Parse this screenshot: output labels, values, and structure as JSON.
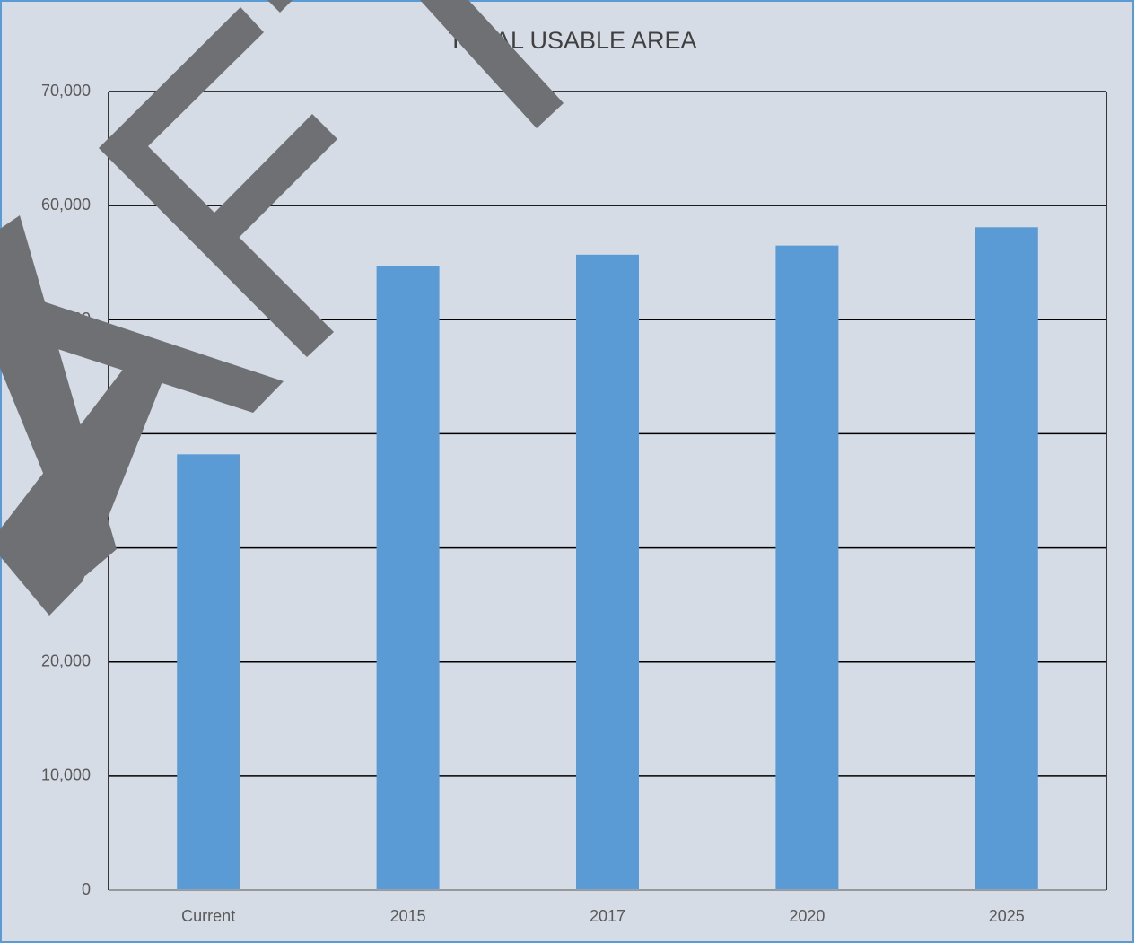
{
  "chart_data": {
    "type": "bar",
    "title": "TOTAL USABLE AREA",
    "categories": [
      "Current",
      "2015",
      "2017",
      "2020",
      "2025"
    ],
    "values": [
      38200,
      54700,
      55700,
      56500,
      58100
    ],
    "color": "#5b9bd5",
    "ylim": [
      0,
      70000
    ],
    "yticks": [
      0,
      {
        "value": 10000,
        "label": "10,000"
      },
      {
        "value": 20000,
        "label": "20,000"
      },
      {
        "value": 30000,
        "label": "30,000"
      },
      {
        "value": 40000,
        "label": "40,000"
      },
      {
        "value": 50000,
        "label": "50,000"
      },
      {
        "value": 60000,
        "label": "60,000"
      },
      {
        "value": 70000,
        "label": "70,000"
      }
    ],
    "grid": true
  }
}
